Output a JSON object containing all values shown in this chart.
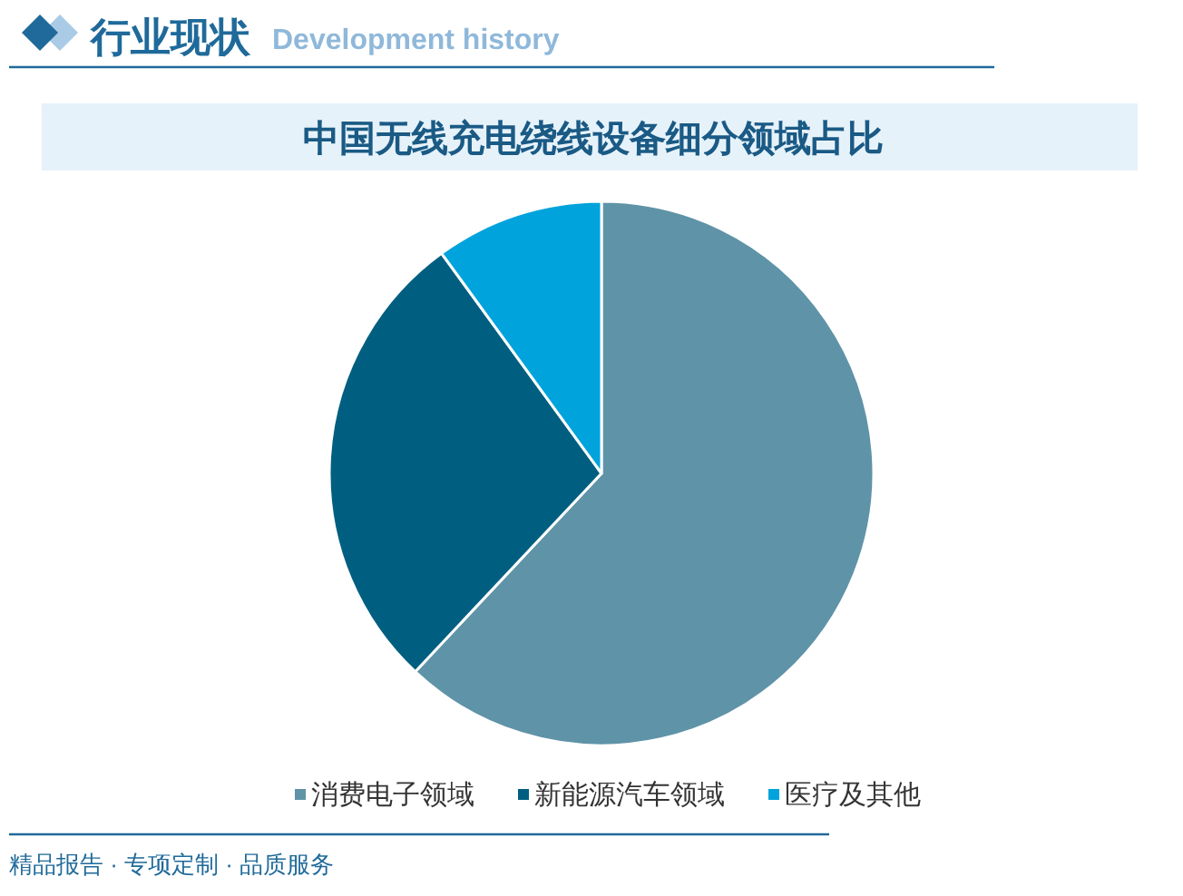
{
  "chart_data": {
    "type": "pie",
    "title": "中国无线充电绕线设备细分领域占比",
    "categories": [
      "消费电子领域",
      "新能源汽车领域",
      "医疗及其他"
    ],
    "values": [
      62,
      28,
      10
    ],
    "colors": [
      "#5f93a8",
      "#005f80",
      "#00a3dc"
    ],
    "legend": "bottom",
    "annotations": [
      "行业现状",
      "Development history",
      "精品报告 · 专项定制 · 品质服务"
    ]
  }
}
